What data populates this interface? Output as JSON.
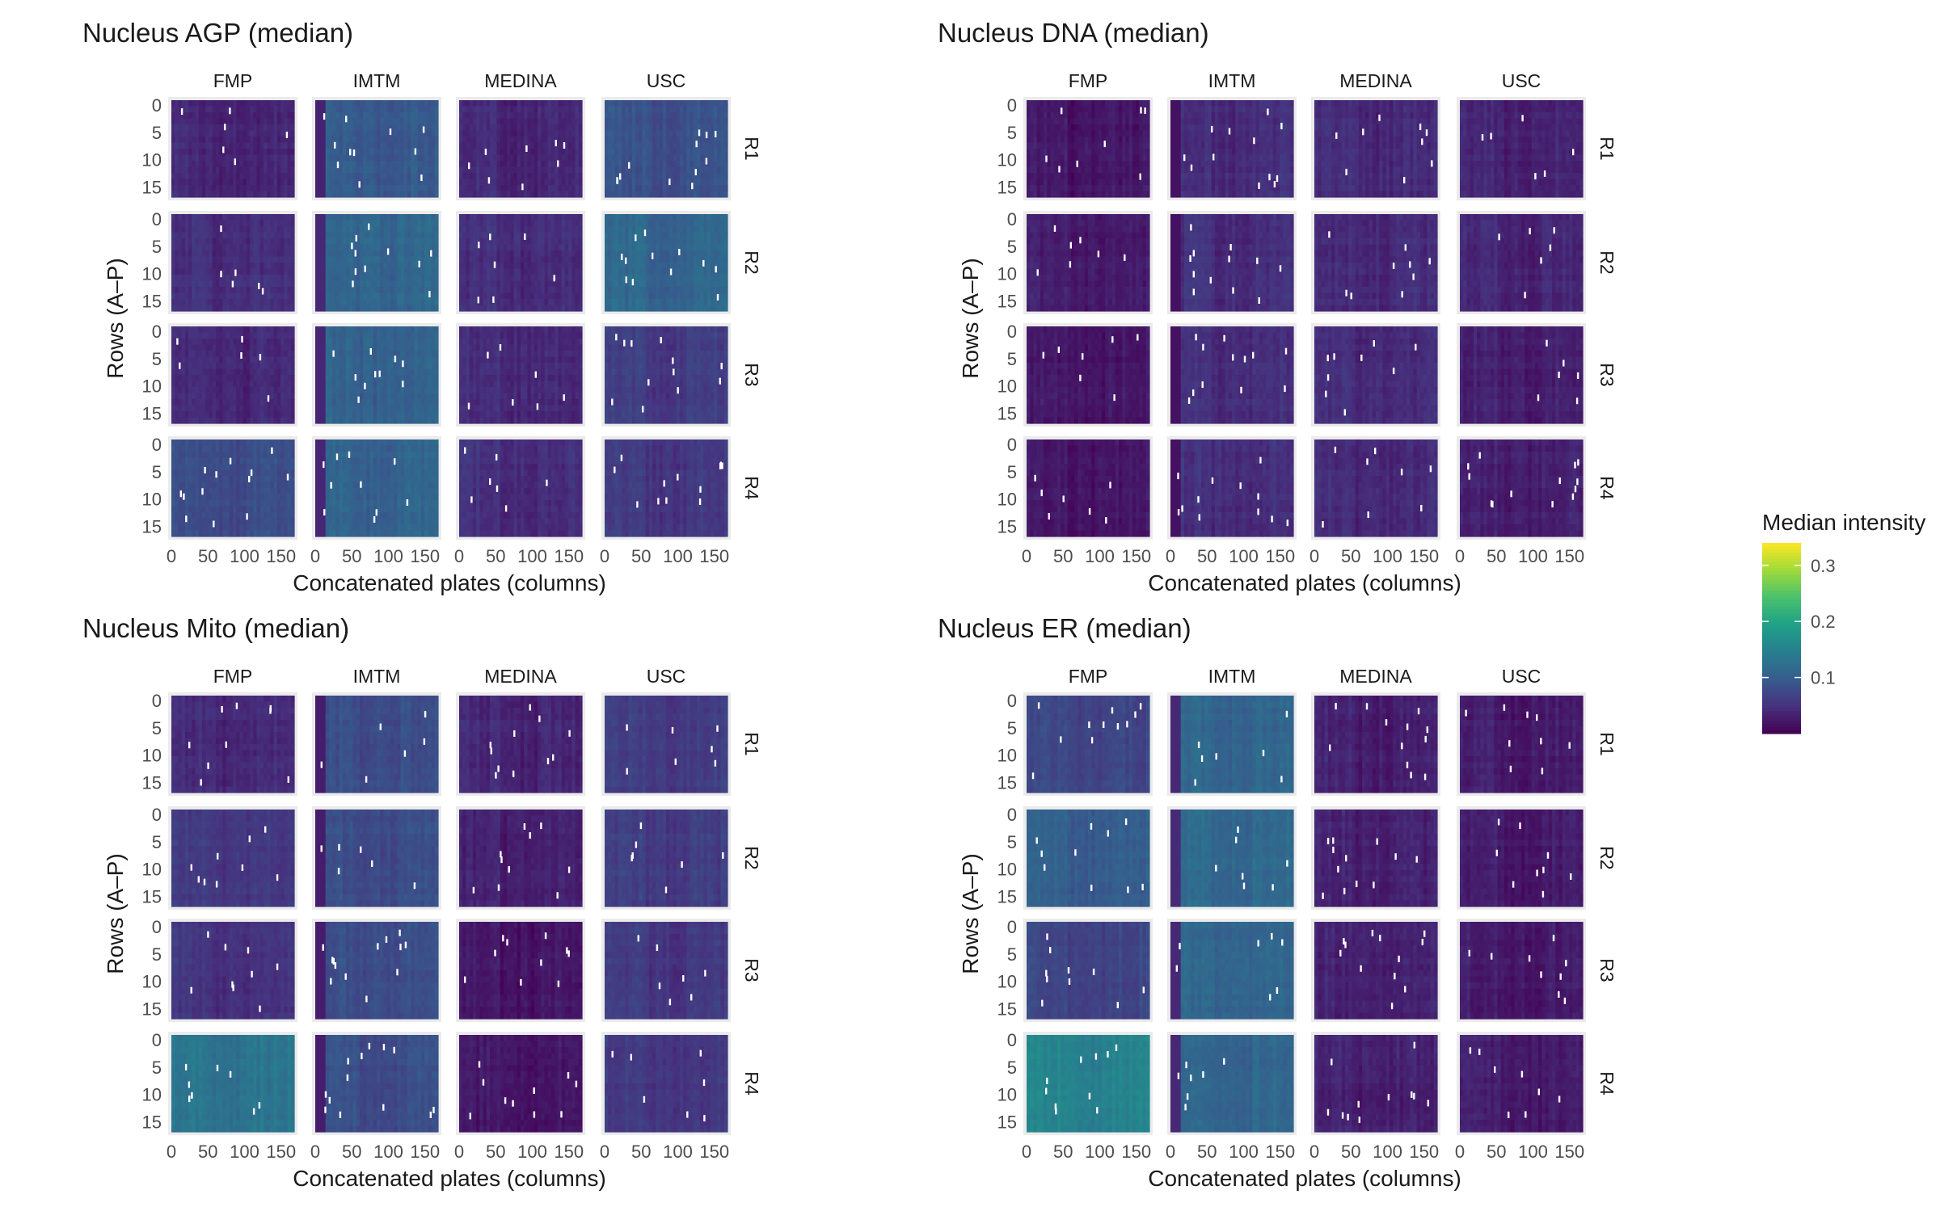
{
  "chart_data": [
    {
      "type": "heatmap",
      "title": "Nucleus AGP (median)",
      "xlabel": "Concatenated plates (columns)",
      "ylabel": "Rows (A–P)",
      "x_ticks": [
        "0",
        "50",
        "100",
        "150"
      ],
      "y_ticks": [
        "0",
        "5",
        "10",
        "15"
      ],
      "xlim": [
        0,
        168
      ],
      "ylim": [
        0,
        16
      ],
      "facet_cols": [
        "FMP",
        "IMTM",
        "MEDINA",
        "USC"
      ],
      "facet_rows": [
        "R1",
        "R2",
        "R3",
        "R4"
      ],
      "mean_intensity": [
        [
          0.035,
          0.095,
          0.04,
          0.085
        ],
        [
          0.045,
          0.11,
          0.045,
          0.11
        ],
        [
          0.04,
          0.105,
          0.04,
          0.06
        ],
        [
          0.08,
          0.105,
          0.045,
          0.055
        ]
      ]
    },
    {
      "type": "heatmap",
      "title": "Nucleus DNA (median)",
      "xlabel": "Concatenated plates (columns)",
      "ylabel": "Rows (A–P)",
      "x_ticks": [
        "0",
        "50",
        "100",
        "150"
      ],
      "y_ticks": [
        "0",
        "5",
        "10",
        "15"
      ],
      "xlim": [
        0,
        168
      ],
      "ylim": [
        0,
        16
      ],
      "facet_cols": [
        "FMP",
        "IMTM",
        "MEDINA",
        "USC"
      ],
      "facet_rows": [
        "R1",
        "R2",
        "R3",
        "R4"
      ],
      "mean_intensity": [
        [
          0.02,
          0.045,
          0.04,
          0.035
        ],
        [
          0.025,
          0.045,
          0.04,
          0.035
        ],
        [
          0.02,
          0.045,
          0.04,
          0.03
        ],
        [
          0.02,
          0.045,
          0.04,
          0.03
        ]
      ]
    },
    {
      "type": "heatmap",
      "title": "Nucleus Mito (median)",
      "xlabel": "Concatenated plates (columns)",
      "ylabel": "Rows (A–P)",
      "x_ticks": [
        "0",
        "50",
        "100",
        "150"
      ],
      "y_ticks": [
        "0",
        "5",
        "10",
        "15"
      ],
      "xlim": [
        0,
        168
      ],
      "ylim": [
        0,
        16
      ],
      "facet_cols": [
        "FMP",
        "IMTM",
        "MEDINA",
        "USC"
      ],
      "facet_rows": [
        "R1",
        "R2",
        "R3",
        "R4"
      ],
      "mean_intensity": [
        [
          0.04,
          0.08,
          0.035,
          0.06
        ],
        [
          0.055,
          0.08,
          0.03,
          0.06
        ],
        [
          0.05,
          0.08,
          0.02,
          0.055
        ],
        [
          0.13,
          0.08,
          0.02,
          0.055
        ]
      ]
    },
    {
      "type": "heatmap",
      "title": "Nucleus ER (median)",
      "xlabel": "Concatenated plates (columns)",
      "ylabel": "Rows (A–P)",
      "x_ticks": [
        "0",
        "50",
        "100",
        "150"
      ],
      "y_ticks": [
        "0",
        "5",
        "10",
        "15"
      ],
      "xlim": [
        0,
        168
      ],
      "ylim": [
        0,
        16
      ],
      "facet_cols": [
        "FMP",
        "IMTM",
        "MEDINA",
        "USC"
      ],
      "facet_rows": [
        "R1",
        "R2",
        "R3",
        "R4"
      ],
      "mean_intensity": [
        [
          0.07,
          0.11,
          0.03,
          0.025
        ],
        [
          0.1,
          0.115,
          0.03,
          0.025
        ],
        [
          0.07,
          0.11,
          0.03,
          0.025
        ],
        [
          0.15,
          0.11,
          0.03,
          0.025
        ]
      ]
    }
  ],
  "legend": {
    "title": "Median intensity",
    "ticks": [
      "0.1",
      "0.2",
      "0.3"
    ],
    "tick_values": [
      0.1,
      0.2,
      0.3
    ],
    "range": [
      0.0,
      0.34
    ],
    "palette": [
      "#440154",
      "#46327e",
      "#365c8d",
      "#277f8e",
      "#1fa187",
      "#4ac16d",
      "#a0da39",
      "#fde725"
    ]
  },
  "colors": {
    "panel_bg": "#ebebeb",
    "outlier": "#ffffff",
    "text": "#1a1a1a",
    "tick": "#4d4d4d"
  }
}
